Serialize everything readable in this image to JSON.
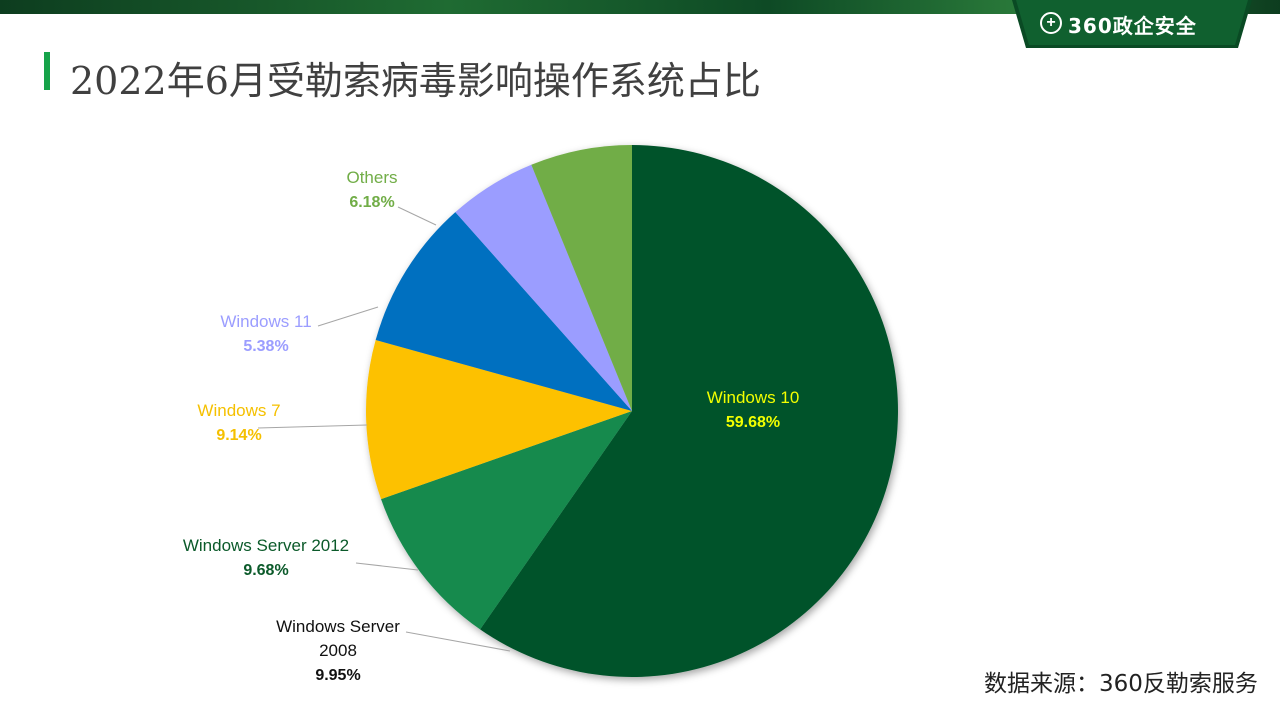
{
  "header": {
    "title": "2022年6月受勒索病毒影响操作系统占比",
    "logo_text": "360政企安全",
    "logo_icon": "plus-circle-icon"
  },
  "footer": {
    "source": "数据来源：360反勒索服务"
  },
  "colors": {
    "title_accent": "#16a34a",
    "header_band": "#0e4a25"
  },
  "chart_data": {
    "type": "pie",
    "title": "",
    "slices": [
      {
        "name": "Windows 10",
        "value": 59.68,
        "value_label": "59.68%",
        "color": "#05532b",
        "label_color": "#f2ff00"
      },
      {
        "name": "Windows Server 2008",
        "value": 9.95,
        "value_label": "9.95%",
        "color": "#138a4e",
        "label_color": "#111111"
      },
      {
        "name": "Windows Server 2012",
        "value": 9.68,
        "value_label": "9.68%",
        "color": "#fdc100",
        "label_color": "#0b5a2a"
      },
      {
        "name": "Windows 7",
        "value": 9.14,
        "value_label": "9.14%",
        "color": "#0070c0",
        "label_color": "#f5c000"
      },
      {
        "name": "Windows 11",
        "value": 5.38,
        "value_label": "5.38%",
        "color": "#9b9dff",
        "label_color": "#9b9dff"
      },
      {
        "name": "Others",
        "value": 6.18,
        "value_label": "6.18%",
        "color": "#71ad47",
        "label_color": "#71ad47"
      }
    ]
  }
}
